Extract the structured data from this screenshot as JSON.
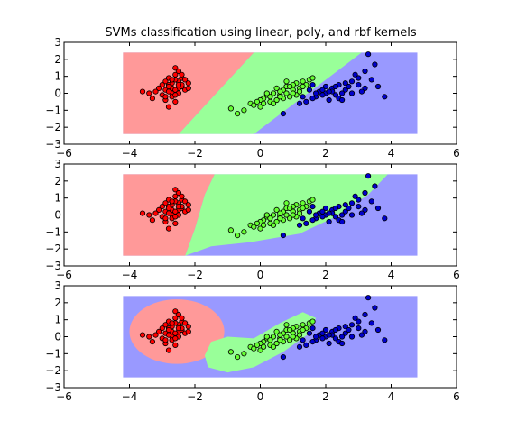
{
  "chart_data": {
    "type": "scatter",
    "title": "SVMs classification using linear, poly, and rbf kernels",
    "xlim": [
      -6,
      6
    ],
    "ylim": [
      -3,
      3
    ],
    "xticks": [
      -6,
      -4,
      -2,
      0,
      2,
      4,
      6
    ],
    "yticks": [
      -3,
      -2,
      -1,
      0,
      1,
      2,
      3
    ],
    "grid": false,
    "region_extent": {
      "x": [
        -4.2,
        4.8
      ],
      "y": [
        -2.4,
        2.4
      ]
    },
    "class_colors": {
      "red": {
        "region": "#ff9999",
        "point": "#ff0000"
      },
      "green": {
        "region": "#99ff99",
        "point": "#66ff33"
      },
      "blue": {
        "region": "#9999ff",
        "point": "#0000cc"
      }
    },
    "panels": [
      {
        "kernel": "linear"
      },
      {
        "kernel": "poly"
      },
      {
        "kernel": "rbf"
      }
    ],
    "series": [
      {
        "class": "red",
        "points": [
          [
            -2.9,
            0.2
          ],
          [
            -2.7,
            0.6
          ],
          [
            -2.5,
            1.3
          ],
          [
            -2.4,
            0.9
          ],
          [
            -2.6,
            1.1
          ],
          [
            -2.8,
            0.5
          ],
          [
            -3.0,
            -0.1
          ],
          [
            -2.3,
            0.8
          ],
          [
            -2.5,
            0.3
          ],
          [
            -2.7,
            0.0
          ],
          [
            -2.9,
            -0.4
          ],
          [
            -2.6,
            -0.5
          ],
          [
            -2.4,
            0.4
          ],
          [
            -2.2,
            0.6
          ],
          [
            -3.1,
            0.3
          ],
          [
            -2.8,
            0.9
          ],
          [
            -2.5,
            0.7
          ],
          [
            -2.7,
            0.3
          ],
          [
            -2.6,
            0.8
          ],
          [
            -2.4,
            1.1
          ],
          [
            -2.9,
            0.7
          ],
          [
            -3.2,
            0.1
          ],
          [
            -2.7,
            -0.2
          ],
          [
            -2.8,
            -0.8
          ],
          [
            -3.0,
            0.5
          ],
          [
            -2.6,
            0.2
          ],
          [
            -2.3,
            0.2
          ],
          [
            -2.5,
            0.0
          ],
          [
            -2.8,
            0.1
          ],
          [
            -3.3,
            -0.3
          ],
          [
            -3.4,
            0.0
          ],
          [
            -2.4,
            0.5
          ],
          [
            -2.6,
            1.5
          ],
          [
            -2.2,
            0.3
          ],
          [
            -2.9,
            -0.2
          ],
          [
            -2.7,
            0.8
          ],
          [
            -2.5,
            0.5
          ],
          [
            -3.6,
            0.1
          ],
          [
            -2.6,
            -0.1
          ],
          [
            -2.8,
            0.4
          ]
        ]
      },
      {
        "class": "green",
        "points": [
          [
            -0.9,
            -0.9
          ],
          [
            -0.7,
            -1.2
          ],
          [
            -0.5,
            -1.0
          ],
          [
            -0.3,
            -0.6
          ],
          [
            0.0,
            -0.8
          ],
          [
            0.1,
            -0.3
          ],
          [
            0.3,
            -0.5
          ],
          [
            0.5,
            -0.4
          ],
          [
            0.6,
            -0.1
          ],
          [
            0.8,
            0.0
          ],
          [
            1.0,
            0.2
          ],
          [
            1.2,
            0.3
          ],
          [
            1.4,
            0.5
          ],
          [
            0.9,
            -0.2
          ],
          [
            0.7,
            0.2
          ],
          [
            0.4,
            0.0
          ],
          [
            0.2,
            -0.1
          ],
          [
            1.1,
            0.6
          ],
          [
            1.3,
            0.7
          ],
          [
            0.5,
            0.3
          ],
          [
            0.8,
            0.4
          ],
          [
            0.3,
            -0.2
          ],
          [
            0.0,
            -0.4
          ],
          [
            -0.1,
            -0.5
          ],
          [
            0.6,
            0.1
          ],
          [
            1.0,
            0.5
          ],
          [
            1.5,
            0.8
          ],
          [
            0.9,
            0.4
          ],
          [
            1.2,
            0.1
          ],
          [
            0.7,
            -0.3
          ],
          [
            0.4,
            -0.6
          ],
          [
            1.3,
            0.4
          ],
          [
            0.2,
            0.0
          ],
          [
            0.6,
            -0.2
          ],
          [
            1.1,
            -0.1
          ],
          [
            -0.2,
            -0.7
          ],
          [
            0.8,
            0.7
          ],
          [
            1.6,
            0.9
          ],
          [
            0.1,
            -0.6
          ],
          [
            1.0,
            0.0
          ]
        ]
      },
      {
        "class": "blue",
        "points": [
          [
            0.7,
            -1.2
          ],
          [
            1.4,
            -0.5
          ],
          [
            1.7,
            -0.2
          ],
          [
            2.0,
            0.0
          ],
          [
            2.2,
            0.3
          ],
          [
            2.4,
            0.5
          ],
          [
            2.6,
            0.2
          ],
          [
            2.8,
            0.7
          ],
          [
            3.0,
            0.5
          ],
          [
            3.2,
            0.3
          ],
          [
            3.4,
            0.8
          ],
          [
            3.6,
            0.4
          ],
          [
            3.8,
            -0.2
          ],
          [
            2.1,
            -0.4
          ],
          [
            1.8,
            0.1
          ],
          [
            1.6,
            -0.3
          ],
          [
            2.3,
            -0.1
          ],
          [
            2.5,
            0.0
          ],
          [
            2.7,
            0.4
          ],
          [
            1.5,
            0.2
          ],
          [
            1.9,
            -0.1
          ],
          [
            2.2,
            0.1
          ],
          [
            2.9,
            1.1
          ],
          [
            3.2,
            1.3
          ],
          [
            3.3,
            2.3
          ],
          [
            3.5,
            1.7
          ],
          [
            1.3,
            -0.2
          ],
          [
            2.0,
            0.4
          ],
          [
            2.4,
            -0.3
          ],
          [
            1.7,
            0.0
          ],
          [
            2.6,
            0.6
          ],
          [
            3.1,
            0.1
          ],
          [
            2.8,
            0.0
          ],
          [
            1.2,
            -0.6
          ],
          [
            2.3,
            0.4
          ],
          [
            1.9,
            0.2
          ],
          [
            2.5,
            -0.4
          ],
          [
            3.0,
            0.9
          ],
          [
            1.6,
            0.5
          ],
          [
            2.1,
            0.1
          ]
        ]
      }
    ]
  }
}
